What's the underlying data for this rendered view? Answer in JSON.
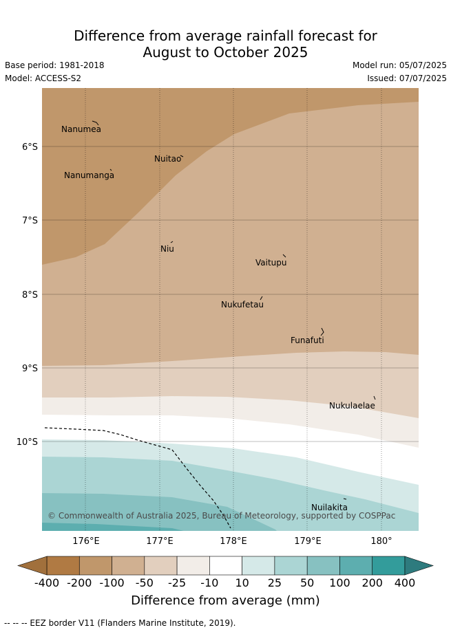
{
  "header": {
    "title_line1": "Difference from average rainfall forecast for",
    "title_line2": "August to October 2025",
    "base_period": "Base period: 1981-2018",
    "model": "Model: ACCESS-S2",
    "model_run": "Model run: 05/07/2025",
    "issued": "Issued: 07/07/2025"
  },
  "map": {
    "lat_labels": [
      "6°S",
      "7°S",
      "8°S",
      "9°S",
      "10°S"
    ],
    "lon_labels": [
      "176°E",
      "177°E",
      "178°E",
      "179°E",
      "180°"
    ],
    "places": [
      "Nanumea",
      "Nuitao",
      "Nanumanga",
      "Niu",
      "Vaitupu",
      "Nukufetau",
      "Funafuti",
      "Nukulaelae",
      "Nuilakita"
    ],
    "copyright": "© Commonwealth of Australia 2025, Bureau of Meteorology, supported by COSPPac",
    "colors": {
      "c_m200": "#c0976b",
      "c_m100": "#d0b091",
      "c_m50": "#e2cfbe",
      "c_m25": "#f2ede8",
      "c_p10": "#d5e9e8",
      "c_p25": "#abd5d4",
      "c_p50": "#87c1c1",
      "c_p100": "#5daeaf"
    }
  },
  "colorbar": {
    "labels": [
      "-400",
      "-200",
      "-100",
      "-50",
      "-25",
      "-10",
      "10",
      "25",
      "50",
      "100",
      "200",
      "400"
    ],
    "colors": [
      "#b07a43",
      "#c0976b",
      "#d0b091",
      "#e2cfbe",
      "#f2ede8",
      "#ffffff",
      "#d5e9e8",
      "#abd5d4",
      "#87c1c1",
      "#5daeaf",
      "#339c9b"
    ],
    "under_color": "#a1703c",
    "over_color": "#2e7b7e",
    "title": "Difference from average (mm)"
  },
  "footnote": "-- -- -- EEZ border V11 (Flanders Marine Institute, 2019)."
}
